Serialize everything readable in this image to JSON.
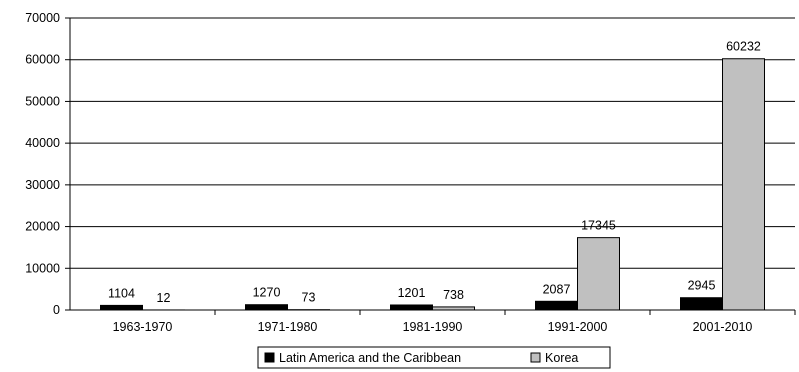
{
  "chart_data": {
    "type": "bar",
    "title": "",
    "xlabel": "",
    "ylabel": "",
    "categories": [
      "1963-1970",
      "1971-1980",
      "1981-1990",
      "1991-2000",
      "2001-2010"
    ],
    "series": [
      {
        "name": "Latin America and the Caribbean",
        "values": [
          1104,
          1270,
          1201,
          2087,
          2945
        ],
        "color": "#000000"
      },
      {
        "name": "Korea",
        "values": [
          12,
          73,
          738,
          17345,
          60232
        ],
        "color": "#c0c0c0"
      }
    ],
    "ylim": [
      0,
      70000
    ],
    "yticks": [
      0,
      10000,
      20000,
      30000,
      40000,
      50000,
      60000,
      70000
    ],
    "data_labels": [
      [
        "1104",
        "1270",
        "1201",
        "2087",
        "2945"
      ],
      [
        "12",
        "73",
        "738",
        "17345",
        "60232"
      ]
    ],
    "grid": true,
    "legend_position": "bottom"
  }
}
